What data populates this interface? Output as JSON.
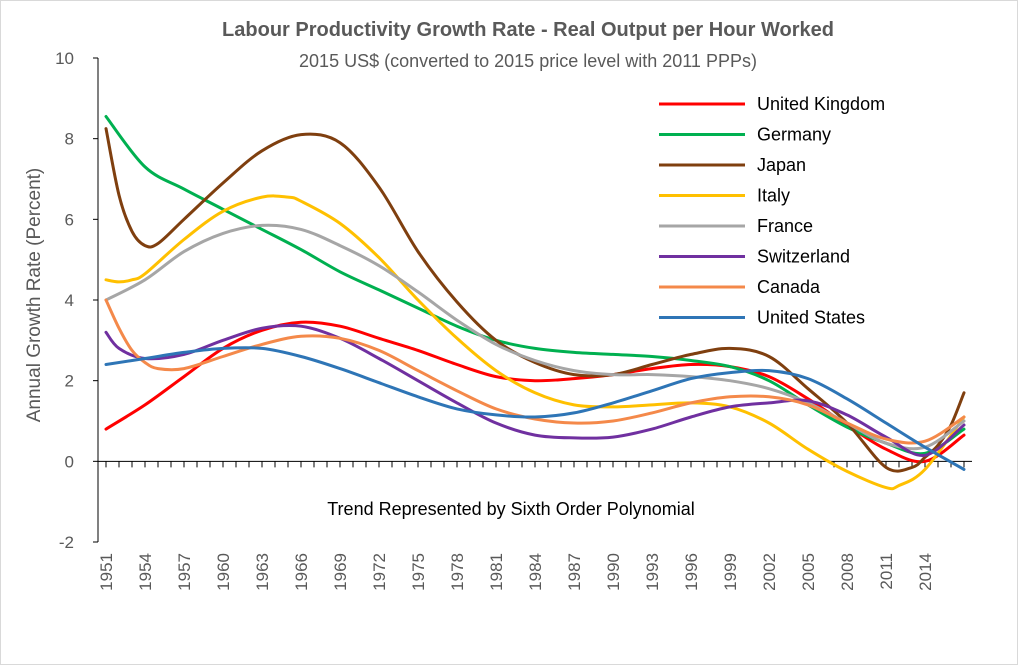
{
  "chart_data": {
    "type": "line",
    "title": "Labour Productivity Growth Rate - Real Output per Hour Worked",
    "subtitle": "2015 US$ (converted to 2015 price level with 2011 PPPs)",
    "xlabel": "",
    "ylabel": "Annual Growth Rate (Percent)",
    "ylim": [
      -2,
      10
    ],
    "xlim": [
      1951,
      2017
    ],
    "yticks": [
      -2,
      0,
      2,
      4,
      6,
      8,
      10
    ],
    "xticks": [
      1951,
      1954,
      1957,
      1960,
      1963,
      1966,
      1969,
      1972,
      1975,
      1978,
      1981,
      1984,
      1987,
      1990,
      1993,
      1996,
      1999,
      2002,
      2005,
      2008,
      2011,
      2014
    ],
    "annotation": "Trend Represented by Sixth Order Polynomial",
    "legend_position": "top-right",
    "grid": false,
    "series": [
      {
        "name": "United Kingdom",
        "color": "#ff0000",
        "x": [
          1951,
          1954,
          1957,
          1960,
          1963,
          1966,
          1969,
          1972,
          1975,
          1978,
          1981,
          1984,
          1987,
          1990,
          1993,
          1996,
          1999,
          2002,
          2005,
          2008,
          2011,
          2014,
          2017
        ],
        "y": [
          0.8,
          1.4,
          2.1,
          2.8,
          3.25,
          3.45,
          3.35,
          3.05,
          2.75,
          2.4,
          2.1,
          2.0,
          2.05,
          2.15,
          2.3,
          2.4,
          2.35,
          2.1,
          1.55,
          0.9,
          0.3,
          0.0,
          0.65
        ]
      },
      {
        "name": "Germany",
        "color": "#00b050",
        "x": [
          1951,
          1954,
          1957,
          1960,
          1963,
          1966,
          1969,
          1972,
          1975,
          1978,
          1981,
          1984,
          1987,
          1990,
          1993,
          1996,
          1999,
          2002,
          2005,
          2008,
          2011,
          2014,
          2017
        ],
        "y": [
          8.55,
          7.3,
          6.75,
          6.25,
          5.75,
          5.25,
          4.7,
          4.25,
          3.8,
          3.35,
          3.0,
          2.8,
          2.7,
          2.65,
          2.6,
          2.5,
          2.35,
          2.0,
          1.4,
          0.85,
          0.45,
          0.2,
          0.8
        ]
      },
      {
        "name": "Japan",
        "color": "#7f3f0f",
        "x": [
          1951,
          1952,
          1953,
          1954,
          1955,
          1957,
          1960,
          1963,
          1966,
          1969,
          1972,
          1975,
          1978,
          1981,
          1984,
          1987,
          1990,
          1993,
          1996,
          1999,
          2002,
          2005,
          2008,
          2011,
          2013,
          2014,
          2015,
          2016,
          2017
        ],
        "y": [
          8.25,
          6.6,
          5.7,
          5.35,
          5.4,
          6.0,
          6.9,
          7.7,
          8.1,
          7.9,
          6.8,
          5.2,
          3.95,
          3.0,
          2.45,
          2.15,
          2.15,
          2.4,
          2.65,
          2.8,
          2.6,
          1.8,
          0.95,
          -0.15,
          -0.15,
          0.1,
          0.4,
          0.9,
          1.7
        ]
      },
      {
        "name": "Italy",
        "color": "#ffc000",
        "x": [
          1951,
          1952,
          1953,
          1954,
          1957,
          1960,
          1963,
          1965,
          1966,
          1969,
          1972,
          1975,
          1978,
          1981,
          1984,
          1987,
          1990,
          1993,
          1996,
          1999,
          2002,
          2005,
          2008,
          2011,
          2012,
          2014,
          2017
        ],
        "y": [
          4.5,
          4.45,
          4.5,
          4.65,
          5.5,
          6.2,
          6.55,
          6.55,
          6.45,
          5.9,
          5.05,
          4.0,
          3.05,
          2.25,
          1.7,
          1.4,
          1.35,
          1.4,
          1.45,
          1.35,
          0.95,
          0.3,
          -0.25,
          -0.65,
          -0.6,
          -0.2,
          1.1
        ]
      },
      {
        "name": "France",
        "color": "#a6a6a6",
        "x": [
          1951,
          1954,
          1957,
          1960,
          1963,
          1966,
          1969,
          1972,
          1975,
          1978,
          1981,
          1984,
          1987,
          1990,
          1993,
          1996,
          1999,
          2002,
          2005,
          2008,
          2011,
          2014,
          2017
        ],
        "y": [
          4.0,
          4.5,
          5.2,
          5.65,
          5.85,
          5.75,
          5.35,
          4.85,
          4.2,
          3.5,
          2.9,
          2.5,
          2.25,
          2.15,
          2.15,
          2.1,
          2.0,
          1.8,
          1.45,
          0.95,
          0.45,
          0.35,
          1.0
        ]
      },
      {
        "name": "Switzerland",
        "color": "#7030a0",
        "x": [
          1951,
          1952,
          1954,
          1957,
          1960,
          1963,
          1966,
          1969,
          1972,
          1975,
          1978,
          1981,
          1984,
          1987,
          1990,
          1993,
          1996,
          1999,
          2002,
          2005,
          2008,
          2011,
          2014,
          2017
        ],
        "y": [
          3.2,
          2.8,
          2.55,
          2.65,
          3.0,
          3.3,
          3.35,
          3.05,
          2.55,
          2.0,
          1.45,
          0.95,
          0.65,
          0.58,
          0.6,
          0.8,
          1.1,
          1.35,
          1.45,
          1.5,
          1.15,
          0.6,
          0.15,
          0.9
        ]
      },
      {
        "name": "Canada",
        "color": "#f4894a",
        "x": [
          1951,
          1952,
          1953,
          1954,
          1955,
          1957,
          1960,
          1963,
          1966,
          1969,
          1972,
          1975,
          1978,
          1981,
          1984,
          1987,
          1990,
          1993,
          1996,
          1999,
          2002,
          2005,
          2008,
          2011,
          2014,
          2017
        ],
        "y": [
          4.0,
          3.3,
          2.75,
          2.45,
          2.3,
          2.3,
          2.6,
          2.9,
          3.1,
          3.05,
          2.75,
          2.25,
          1.75,
          1.3,
          1.05,
          0.95,
          1.0,
          1.2,
          1.45,
          1.6,
          1.6,
          1.4,
          0.95,
          0.55,
          0.5,
          1.1
        ]
      },
      {
        "name": "United States",
        "color": "#2e75b6",
        "x": [
          1951,
          1954,
          1957,
          1960,
          1963,
          1966,
          1969,
          1972,
          1975,
          1978,
          1981,
          1984,
          1987,
          1990,
          1993,
          1996,
          1999,
          2002,
          2005,
          2008,
          2011,
          2014,
          2017
        ],
        "y": [
          2.4,
          2.55,
          2.7,
          2.8,
          2.8,
          2.6,
          2.3,
          1.95,
          1.6,
          1.3,
          1.15,
          1.1,
          1.2,
          1.45,
          1.75,
          2.05,
          2.2,
          2.25,
          2.05,
          1.55,
          0.95,
          0.35,
          -0.2
        ]
      }
    ]
  }
}
